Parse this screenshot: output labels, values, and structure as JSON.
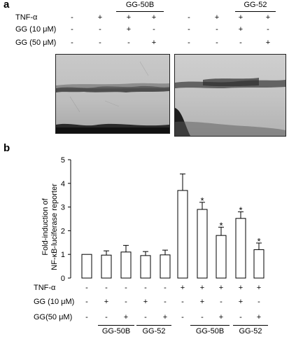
{
  "panel_a": {
    "label": "a",
    "rows": [
      {
        "label": "TNF-α",
        "left": [
          "-",
          "+",
          "+",
          "+"
        ],
        "right": [
          "-",
          "+",
          "+",
          "+"
        ]
      },
      {
        "label": "GG (10 μM)",
        "left": [
          "-",
          "-",
          "+",
          "-"
        ],
        "right": [
          "-",
          "-",
          "+",
          "-"
        ]
      },
      {
        "label": "GG (50 μM)",
        "left": [
          "-",
          "-",
          "-",
          "+"
        ],
        "right": [
          "-",
          "-",
          "-",
          "+"
        ]
      }
    ],
    "group_left": "GG-50B",
    "group_right": "GG-52"
  },
  "panel_b": {
    "label": "b",
    "rows": [
      {
        "label": "TNF-α",
        "values": [
          "-",
          "-",
          "-",
          "-",
          "-",
          "+",
          "+",
          "+",
          "+",
          "+"
        ]
      },
      {
        "label": "GG (10 μM)",
        "values": [
          "-",
          "+",
          "-",
          "+",
          "-",
          "-",
          "+",
          "-",
          "+",
          "-"
        ]
      },
      {
        "label": "GG(50 μM)",
        "values": [
          "-",
          "-",
          "+",
          "-",
          "+",
          "-",
          "-",
          "+",
          "-",
          "+"
        ]
      }
    ],
    "groups": [
      "GG-50B",
      "GG-52",
      "GG-50B",
      "GG-52"
    ]
  },
  "chart_data": {
    "type": "bar",
    "ylabel_line1": "Fold-induction of",
    "ylabel_line2": "NF-κB-luciferase reporter",
    "ylim": [
      0,
      5
    ],
    "yticks": [
      "0",
      "1",
      "2",
      "3",
      "4",
      "5"
    ],
    "values": [
      1.0,
      0.97,
      1.1,
      0.95,
      0.98,
      3.7,
      2.9,
      1.8,
      2.52,
      1.2
    ],
    "errors": [
      0.0,
      0.18,
      0.28,
      0.17,
      0.2,
      0.7,
      0.3,
      0.35,
      0.28,
      0.28
    ],
    "significant": [
      false,
      false,
      false,
      false,
      false,
      false,
      true,
      true,
      true,
      true
    ],
    "star": "*"
  }
}
